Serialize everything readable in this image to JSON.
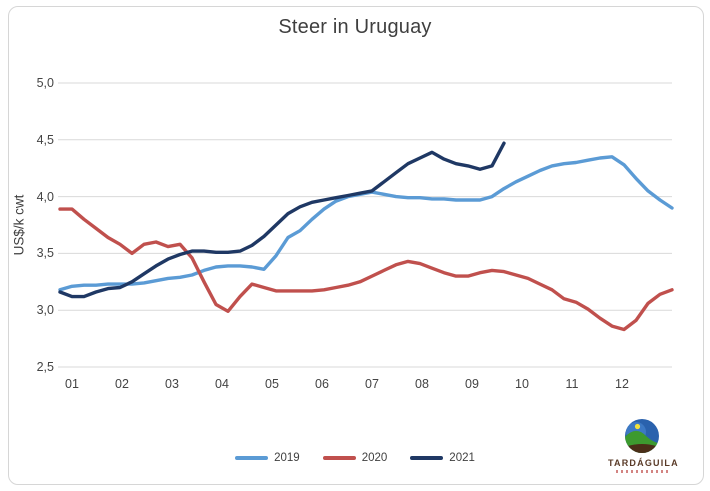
{
  "title": "Steer in Uruguay",
  "y_axis": {
    "title": "US$/k cwt",
    "tick_labels": [
      "5,0",
      "4,5",
      "4,0",
      "3,5",
      "3,0",
      "2,5"
    ],
    "min": 2.5,
    "max": 5.0,
    "step": 0.5
  },
  "x_axis": {
    "tick_labels": [
      "01",
      "02",
      "03",
      "04",
      "05",
      "06",
      "07",
      "08",
      "09",
      "10",
      "11",
      "12"
    ]
  },
  "colors": {
    "grid": "#d9d9d9",
    "series_2019": "#5b9bd5",
    "series_2020": "#c0504d",
    "series_2021": "#1f3864"
  },
  "legend": {
    "items": [
      {
        "label": "2019",
        "color": "#5b9bd5"
      },
      {
        "label": "2020",
        "color": "#c0504d"
      },
      {
        "label": "2021",
        "color": "#1f3864"
      }
    ]
  },
  "logo": {
    "brand": "TARDÁGUILA"
  },
  "chart_data": {
    "type": "line",
    "title": "Steer in Uruguay",
    "xlabel": "",
    "ylabel": "US$/k cwt",
    "ylim": [
      2.5,
      5.0
    ],
    "grid": true,
    "legend_position": "bottom",
    "x_description": "weekly observations Jan-Dec (month labels 01-12); 2021 series ends late September",
    "series": [
      {
        "name": "2019",
        "color": "#5b9bd5",
        "values": [
          3.18,
          3.21,
          3.22,
          3.22,
          3.23,
          3.23,
          3.23,
          3.24,
          3.26,
          3.28,
          3.29,
          3.31,
          3.35,
          3.38,
          3.39,
          3.39,
          3.38,
          3.36,
          3.48,
          3.64,
          3.7,
          3.8,
          3.89,
          3.96,
          4.0,
          4.02,
          4.04,
          4.02,
          4.0,
          3.99,
          3.99,
          3.98,
          3.98,
          3.97,
          3.97,
          3.97,
          4.0,
          4.07,
          4.13,
          4.18,
          4.23,
          4.27,
          4.29,
          4.3,
          4.32,
          4.34,
          4.35,
          4.28,
          4.16,
          4.05,
          3.97,
          3.9
        ]
      },
      {
        "name": "2020",
        "color": "#c0504d",
        "values": [
          3.89,
          3.89,
          3.8,
          3.72,
          3.64,
          3.58,
          3.5,
          3.58,
          3.6,
          3.56,
          3.58,
          3.46,
          3.25,
          3.05,
          2.99,
          3.12,
          3.23,
          3.2,
          3.17,
          3.17,
          3.17,
          3.17,
          3.18,
          3.2,
          3.22,
          3.25,
          3.3,
          3.35,
          3.4,
          3.43,
          3.41,
          3.37,
          3.33,
          3.3,
          3.3,
          3.33,
          3.35,
          3.34,
          3.31,
          3.28,
          3.23,
          3.18,
          3.1,
          3.07,
          3.01,
          2.93,
          2.86,
          2.83,
          2.91,
          3.06,
          3.14,
          3.18
        ]
      },
      {
        "name": "2021",
        "color": "#1f3864",
        "values": [
          3.16,
          3.12,
          3.12,
          3.16,
          3.19,
          3.2,
          3.25,
          3.32,
          3.39,
          3.45,
          3.49,
          3.52,
          3.52,
          3.51,
          3.51,
          3.52,
          3.57,
          3.65,
          3.75,
          3.85,
          3.91,
          3.95,
          3.97,
          3.99,
          4.01,
          4.03,
          4.05,
          4.13,
          4.21,
          4.29,
          4.34,
          4.39,
          4.33,
          4.29,
          4.27,
          4.24,
          4.27,
          4.47
        ]
      }
    ]
  }
}
